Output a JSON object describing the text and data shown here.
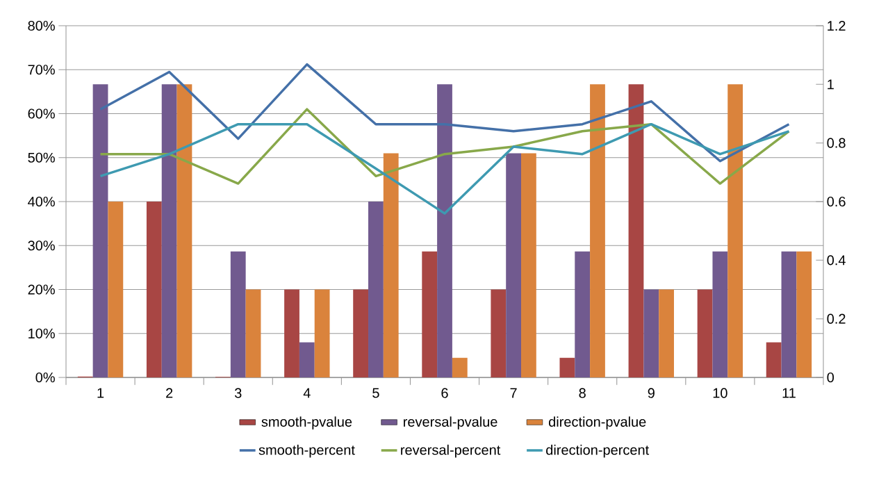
{
  "chart_data": {
    "type": "bar",
    "categories": [
      "1",
      "2",
      "3",
      "4",
      "5",
      "6",
      "7",
      "8",
      "9",
      "10",
      "11"
    ],
    "series": [
      {
        "name": "smooth-pvalue",
        "color": "#a84644",
        "axis": "y2",
        "values": [
          0.003,
          0.6,
          0.002,
          0.3,
          0.3,
          0.43,
          0.3,
          0.067,
          1,
          0.3,
          0.12
        ]
      },
      {
        "name": "reversal-pvalue",
        "color": "#715a8f",
        "axis": "y2",
        "values": [
          1,
          1,
          0.43,
          0.12,
          0.6,
          1,
          0.765,
          0.43,
          0.3,
          0.43,
          0.43
        ]
      },
      {
        "name": "direction-pvalue",
        "color": "#da833c",
        "axis": "y2",
        "values": [
          0.6,
          1,
          0.3,
          0.3,
          0.765,
          0.067,
          0.765,
          1,
          0.3,
          1,
          0.43
        ]
      },
      {
        "name": "smooth-percent",
        "color": "#4470a8",
        "type": "line",
        "values": [
          61,
          69.5,
          54.3,
          71.2,
          57.6,
          57.6,
          56,
          57.6,
          62.8,
          49.2,
          57.6
        ]
      },
      {
        "name": "reversal-percent",
        "color": "#88a84a",
        "type": "line",
        "values": [
          50.8,
          50.8,
          44.1,
          61,
          45.8,
          50.8,
          52.5,
          56,
          57.6,
          44.1,
          56
        ]
      },
      {
        "name": "direction-percent",
        "color": "#3e9ab1",
        "type": "line",
        "values": [
          45.8,
          50.8,
          57.6,
          57.6,
          47.5,
          37.3,
          52.5,
          50.8,
          57.6,
          50.8,
          56
        ]
      }
    ],
    "ylim": [
      0,
      80
    ],
    "yticks": [
      {
        "value": 0,
        "label": "0%"
      },
      {
        "value": 10,
        "label": "10%"
      },
      {
        "value": 20,
        "label": "20%"
      },
      {
        "value": 30,
        "label": "30%"
      },
      {
        "value": 40,
        "label": "40%"
      },
      {
        "value": 50,
        "label": "50%"
      },
      {
        "value": 60,
        "label": "60%"
      },
      {
        "value": 70,
        "label": "70%"
      },
      {
        "value": 80,
        "label": "80%"
      }
    ],
    "y2lim": [
      0,
      1.2
    ],
    "y2ticks": [
      0,
      0.2,
      0.4,
      0.6,
      0.8,
      1,
      1.2
    ],
    "grid": "y",
    "legend": "bottom",
    "marker": "none",
    "line_style": "solid"
  }
}
